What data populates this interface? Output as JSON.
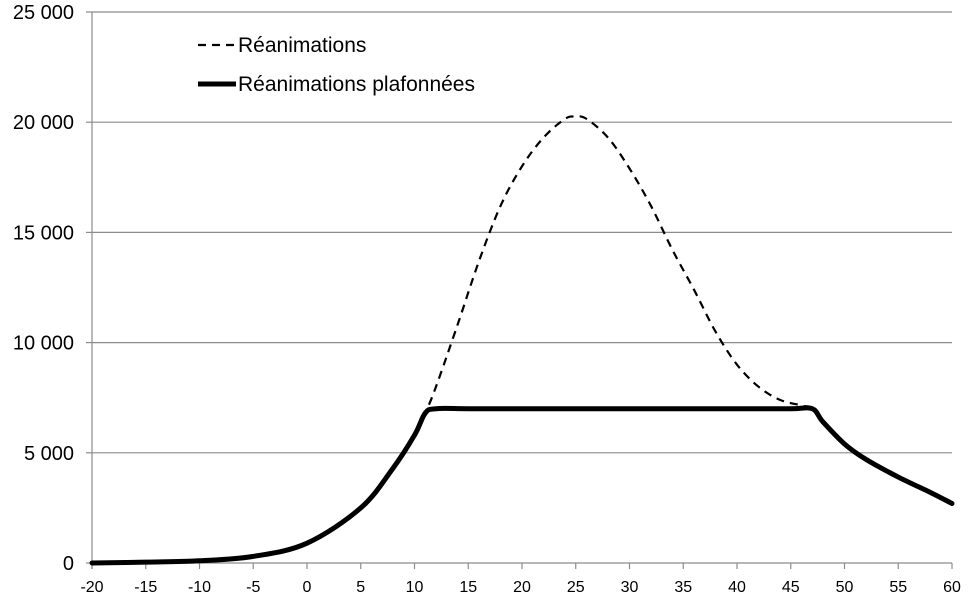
{
  "chart_data": {
    "type": "line",
    "title": "",
    "xlabel": "",
    "ylabel": "",
    "xlim": [
      -20,
      60
    ],
    "ylim": [
      0,
      25000
    ],
    "x_ticks": [
      -20,
      -15,
      -10,
      -5,
      0,
      5,
      10,
      15,
      20,
      25,
      30,
      35,
      40,
      45,
      50,
      55,
      60
    ],
    "x_tick_labels": [
      "-20",
      "-15",
      "-10",
      "-5",
      "0",
      "5",
      "10",
      "15",
      "20",
      "25",
      "30",
      "35",
      "40",
      "45",
      "50",
      "55",
      "60"
    ],
    "y_ticks": [
      0,
      5000,
      10000,
      15000,
      20000,
      25000
    ],
    "y_tick_labels": [
      "0",
      "5 000",
      "10 000",
      "15 000",
      "20 000",
      "25 000"
    ],
    "grid": "horizontal",
    "legend_position": "top-left",
    "series": [
      {
        "name": "Réanimations",
        "style": "dashed",
        "color": "#000000",
        "x": [
          -20,
          -15,
          -10,
          -5,
          0,
          5,
          8,
          10,
          11,
          12,
          14,
          16,
          18,
          20,
          22,
          24,
          25,
          26,
          28,
          30,
          32,
          34,
          36,
          38,
          40,
          42,
          44,
          46,
          47,
          48,
          50,
          52,
          55,
          58,
          60
        ],
        "y": [
          0,
          40,
          100,
          300,
          900,
          2500,
          4300,
          5800,
          6800,
          8000,
          10800,
          13700,
          16200,
          18000,
          19300,
          20150,
          20250,
          20150,
          19300,
          17900,
          16200,
          14200,
          12400,
          10500,
          9000,
          8000,
          7400,
          7150,
          7000,
          6400,
          5400,
          4700,
          3900,
          3200,
          2700
        ]
      },
      {
        "name": "Réanimations plafonnées",
        "style": "solid-thick",
        "color": "#000000",
        "x": [
          -20,
          -15,
          -10,
          -5,
          0,
          5,
          8,
          10,
          11,
          12,
          15,
          20,
          25,
          30,
          35,
          40,
          45,
          47,
          48,
          50,
          52,
          55,
          58,
          60
        ],
        "y": [
          0,
          40,
          100,
          300,
          900,
          2500,
          4300,
          5800,
          6800,
          7000,
          7000,
          7000,
          7000,
          7000,
          7000,
          7000,
          7000,
          7000,
          6400,
          5400,
          4700,
          3900,
          3200,
          2700
        ]
      }
    ]
  }
}
